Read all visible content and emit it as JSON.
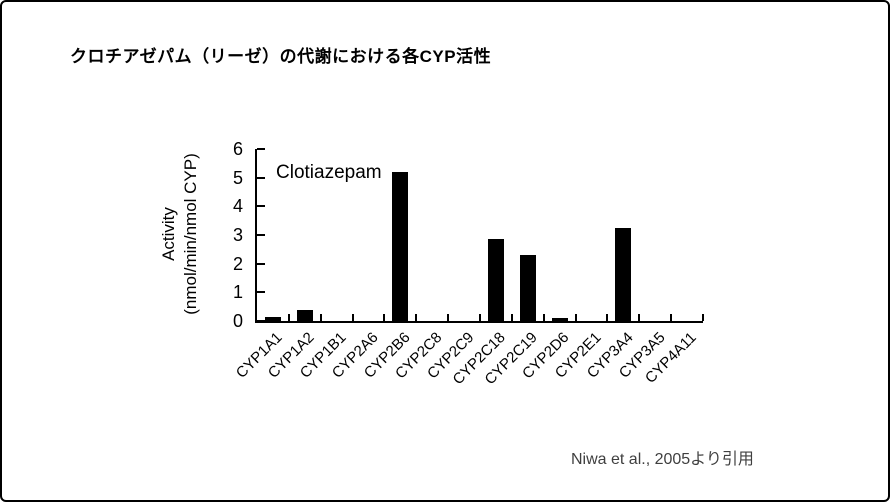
{
  "slide": {
    "title": "クロチアゼパム（リーゼ）の代謝における各CYP活性",
    "citation": "Niwa et al., 2005より引用"
  },
  "styles": {
    "background": "#ffffff",
    "frame_border": "#000000",
    "text_color": "#000000",
    "citation_color": "#3f3f3f"
  },
  "chart_data": {
    "type": "bar",
    "annotation": "Clotiazepam",
    "categories": [
      "CYP1A1",
      "CYP1A2",
      "CYP1B1",
      "CYP2A6",
      "CYP2B6",
      "CYP2C8",
      "CYP2C9",
      "CYP2C18",
      "CYP2C19",
      "CYP2D6",
      "CYP2E1",
      "CYP3A4",
      "CYP3A5",
      "CYP4A11"
    ],
    "values": [
      0.15,
      0.4,
      0,
      0,
      5.2,
      0,
      0,
      2.85,
      2.3,
      0.1,
      0,
      3.25,
      0,
      0
    ],
    "ylabel_line1": "Activity",
    "ylabel_line2": "(nmol/min/nmol CYP)",
    "xlabel": "",
    "ylim": [
      0,
      6
    ],
    "yticks": [
      0,
      1,
      2,
      3,
      4,
      5,
      6
    ],
    "bar_color": "#000000",
    "grid": false,
    "legend_position": "none"
  }
}
